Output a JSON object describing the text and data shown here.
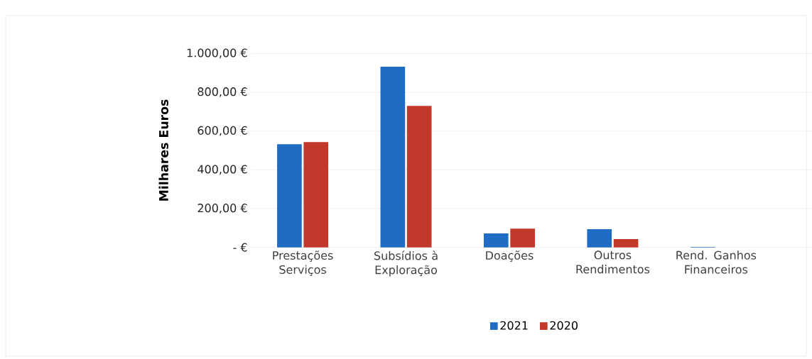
{
  "chart_data": {
    "type": "bar",
    "ylabel": "Milhares Euros",
    "categories": [
      "Prestações Serviços",
      "Subsídios à Exploração",
      "Doações",
      "Outros Rendimentos",
      "Rend. Ganhos Financeiros"
    ],
    "series": [
      {
        "name": "2021",
        "color": "#1f6cc4",
        "values": [
          532,
          932,
          72,
          94,
          2
        ]
      },
      {
        "name": "2020",
        "color": "#c2382a",
        "values": [
          543,
          730,
          97,
          43,
          null
        ]
      }
    ],
    "ylim": [
      0,
      1000
    ],
    "yticks": [
      {
        "value": 0,
        "label": "-   €"
      },
      {
        "value": 200,
        "label": "200,00 €"
      },
      {
        "value": 400,
        "label": "400,00 €"
      },
      {
        "value": 600,
        "label": "600,00 €"
      },
      {
        "value": 800,
        "label": "800,00 €"
      },
      {
        "value": 1000,
        "label": "1.000,00 €"
      }
    ],
    "grid": "y",
    "legend": "bottom"
  }
}
